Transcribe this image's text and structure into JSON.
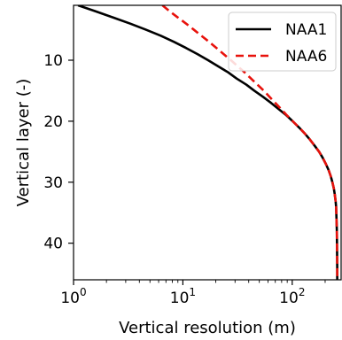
{
  "chart_data": {
    "type": "line",
    "title": "",
    "xlabel": "Vertical resolution (m)",
    "ylabel": "Vertical layer (-)",
    "xscale": "log",
    "xlim": [
      1,
      280
    ],
    "ylim": [
      46,
      1
    ],
    "y_inverted": true,
    "x_ticks": [
      {
        "base": "10",
        "exp": "0",
        "value": 1
      },
      {
        "base": "10",
        "exp": "1",
        "value": 10
      },
      {
        "base": "10",
        "exp": "2",
        "value": 100
      }
    ],
    "y_ticks": [
      10,
      20,
      30,
      40
    ],
    "grid": false,
    "legend": {
      "position": "top-right"
    },
    "series": [
      {
        "name": "NAA1",
        "color": "#000000",
        "dash": "solid",
        "points": [
          {
            "x": 1.1,
            "y": 1
          },
          {
            "x": 1.6,
            "y": 2
          },
          {
            "x": 2.3,
            "y": 3
          },
          {
            "x": 3.3,
            "y": 4
          },
          {
            "x": 4.6,
            "y": 5
          },
          {
            "x": 6.3,
            "y": 6
          },
          {
            "x": 8.3,
            "y": 7
          },
          {
            "x": 10.7,
            "y": 8
          },
          {
            "x": 13.6,
            "y": 9
          },
          {
            "x": 17.0,
            "y": 10
          },
          {
            "x": 21.0,
            "y": 11
          },
          {
            "x": 26.0,
            "y": 12
          },
          {
            "x": 31.0,
            "y": 13
          },
          {
            "x": 38.0,
            "y": 14
          },
          {
            "x": 45.0,
            "y": 15
          },
          {
            "x": 54.0,
            "y": 16
          },
          {
            "x": 64.0,
            "y": 17
          },
          {
            "x": 75.0,
            "y": 18
          },
          {
            "x": 88.0,
            "y": 19
          },
          {
            "x": 101.0,
            "y": 20
          },
          {
            "x": 115.0,
            "y": 21
          },
          {
            "x": 130.0,
            "y": 22
          },
          {
            "x": 145.0,
            "y": 23
          },
          {
            "x": 160.0,
            "y": 24
          },
          {
            "x": 176.0,
            "y": 25
          },
          {
            "x": 190.0,
            "y": 26
          },
          {
            "x": 203.0,
            "y": 27
          },
          {
            "x": 215.0,
            "y": 28
          },
          {
            "x": 225.0,
            "y": 29
          },
          {
            "x": 233.0,
            "y": 30
          },
          {
            "x": 240.0,
            "y": 31
          },
          {
            "x": 245.0,
            "y": 32
          },
          {
            "x": 249.0,
            "y": 33
          },
          {
            "x": 252.0,
            "y": 34
          },
          {
            "x": 254.0,
            "y": 36
          },
          {
            "x": 256.0,
            "y": 38
          },
          {
            "x": 257.0,
            "y": 41
          },
          {
            "x": 258.0,
            "y": 44
          },
          {
            "x": 258.0,
            "y": 46
          }
        ]
      },
      {
        "name": "NAA6",
        "color": "#e8120c",
        "dash": "dashed",
        "points": [
          {
            "x": 6.5,
            "y": 1
          },
          {
            "x": 7.6,
            "y": 2
          },
          {
            "x": 9.0,
            "y": 3
          },
          {
            "x": 10.7,
            "y": 4
          },
          {
            "x": 12.6,
            "y": 5
          },
          {
            "x": 14.8,
            "y": 6
          },
          {
            "x": 17.4,
            "y": 7
          },
          {
            "x": 20.3,
            "y": 8
          },
          {
            "x": 23.6,
            "y": 9
          },
          {
            "x": 27.5,
            "y": 10
          },
          {
            "x": 31.8,
            "y": 11
          },
          {
            "x": 36.7,
            "y": 12
          },
          {
            "x": 42.0,
            "y": 13
          },
          {
            "x": 48.0,
            "y": 14
          },
          {
            "x": 55.0,
            "y": 15
          },
          {
            "x": 62.0,
            "y": 16
          },
          {
            "x": 70.0,
            "y": 17
          },
          {
            "x": 79.0,
            "y": 18
          },
          {
            "x": 89.0,
            "y": 19
          },
          {
            "x": 101.0,
            "y": 20
          },
          {
            "x": 115.0,
            "y": 21
          },
          {
            "x": 130.0,
            "y": 22
          },
          {
            "x": 145.0,
            "y": 23
          },
          {
            "x": 160.0,
            "y": 24
          },
          {
            "x": 176.0,
            "y": 25
          },
          {
            "x": 190.0,
            "y": 26
          },
          {
            "x": 203.0,
            "y": 27
          },
          {
            "x": 215.0,
            "y": 28
          },
          {
            "x": 225.0,
            "y": 29
          },
          {
            "x": 233.0,
            "y": 30
          },
          {
            "x": 240.0,
            "y": 31
          },
          {
            "x": 245.0,
            "y": 32
          },
          {
            "x": 249.0,
            "y": 33
          },
          {
            "x": 252.0,
            "y": 34
          },
          {
            "x": 254.0,
            "y": 36
          },
          {
            "x": 256.0,
            "y": 38
          },
          {
            "x": 257.0,
            "y": 41
          },
          {
            "x": 258.0,
            "y": 44
          },
          {
            "x": 258.0,
            "y": 46
          }
        ]
      }
    ]
  }
}
